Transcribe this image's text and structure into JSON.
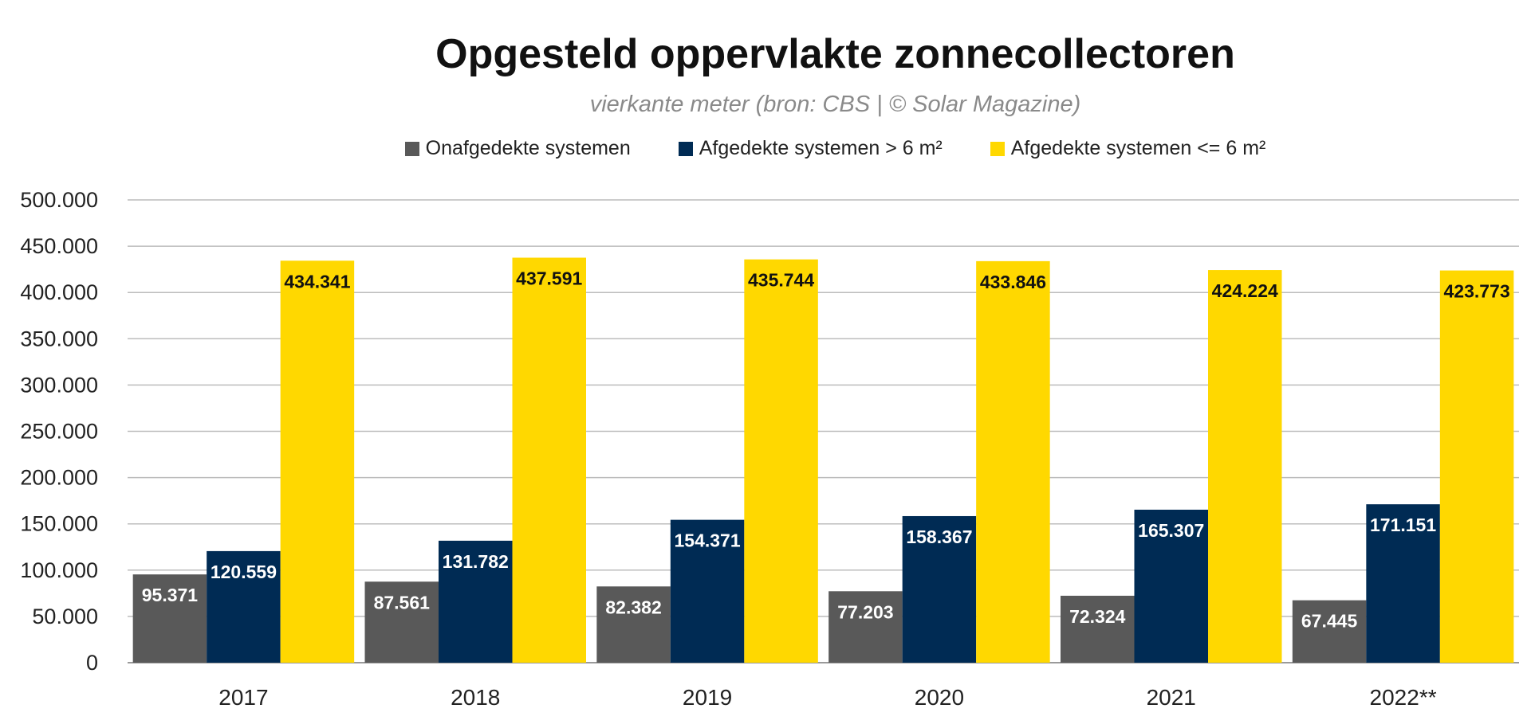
{
  "chart_data": {
    "type": "bar",
    "title": "Opgesteld oppervlakte zonnecollectoren",
    "subtitle": "vierkante meter (bron: CBS | © Solar Magazine)",
    "categories": [
      "2017",
      "2018",
      "2019",
      "2020",
      "2021",
      "2022**"
    ],
    "series": [
      {
        "name": "Onafgedekte systemen",
        "color": "#595959",
        "label_color": "#ffffff",
        "values": [
          95371,
          87561,
          82382,
          77203,
          72324,
          67445
        ],
        "labels": [
          "95.371",
          "87.561",
          "82.382",
          "77.203",
          "72.324",
          "67.445"
        ]
      },
      {
        "name": "Afgedekte systemen > 6 m²",
        "color": "#002b54",
        "label_color": "#ffffff",
        "values": [
          120559,
          131782,
          154371,
          158367,
          165307,
          171151
        ],
        "labels": [
          "120.559",
          "131.782",
          "154.371",
          "158.367",
          "165.307",
          "171.151"
        ]
      },
      {
        "name": "Afgedekte systemen <= 6 m²",
        "color": "#ffd800",
        "label_color": "#111111",
        "values": [
          434341,
          437591,
          435744,
          433846,
          424224,
          423773
        ],
        "labels": [
          "434.341",
          "437.591",
          "435.744",
          "433.846",
          "424.224",
          "423.773"
        ]
      }
    ],
    "ylim": [
      0,
      500000
    ],
    "yticks": [
      0,
      50000,
      100000,
      150000,
      200000,
      250000,
      300000,
      350000,
      400000,
      450000,
      500000
    ],
    "ytick_labels": [
      "0",
      "50.000",
      "100.000",
      "150.000",
      "200.000",
      "250.000",
      "300.000",
      "350.000",
      "400.000",
      "450.000",
      "500.000"
    ],
    "xlabel": "",
    "ylabel": "",
    "grid": true,
    "legend_position": "top-center"
  }
}
